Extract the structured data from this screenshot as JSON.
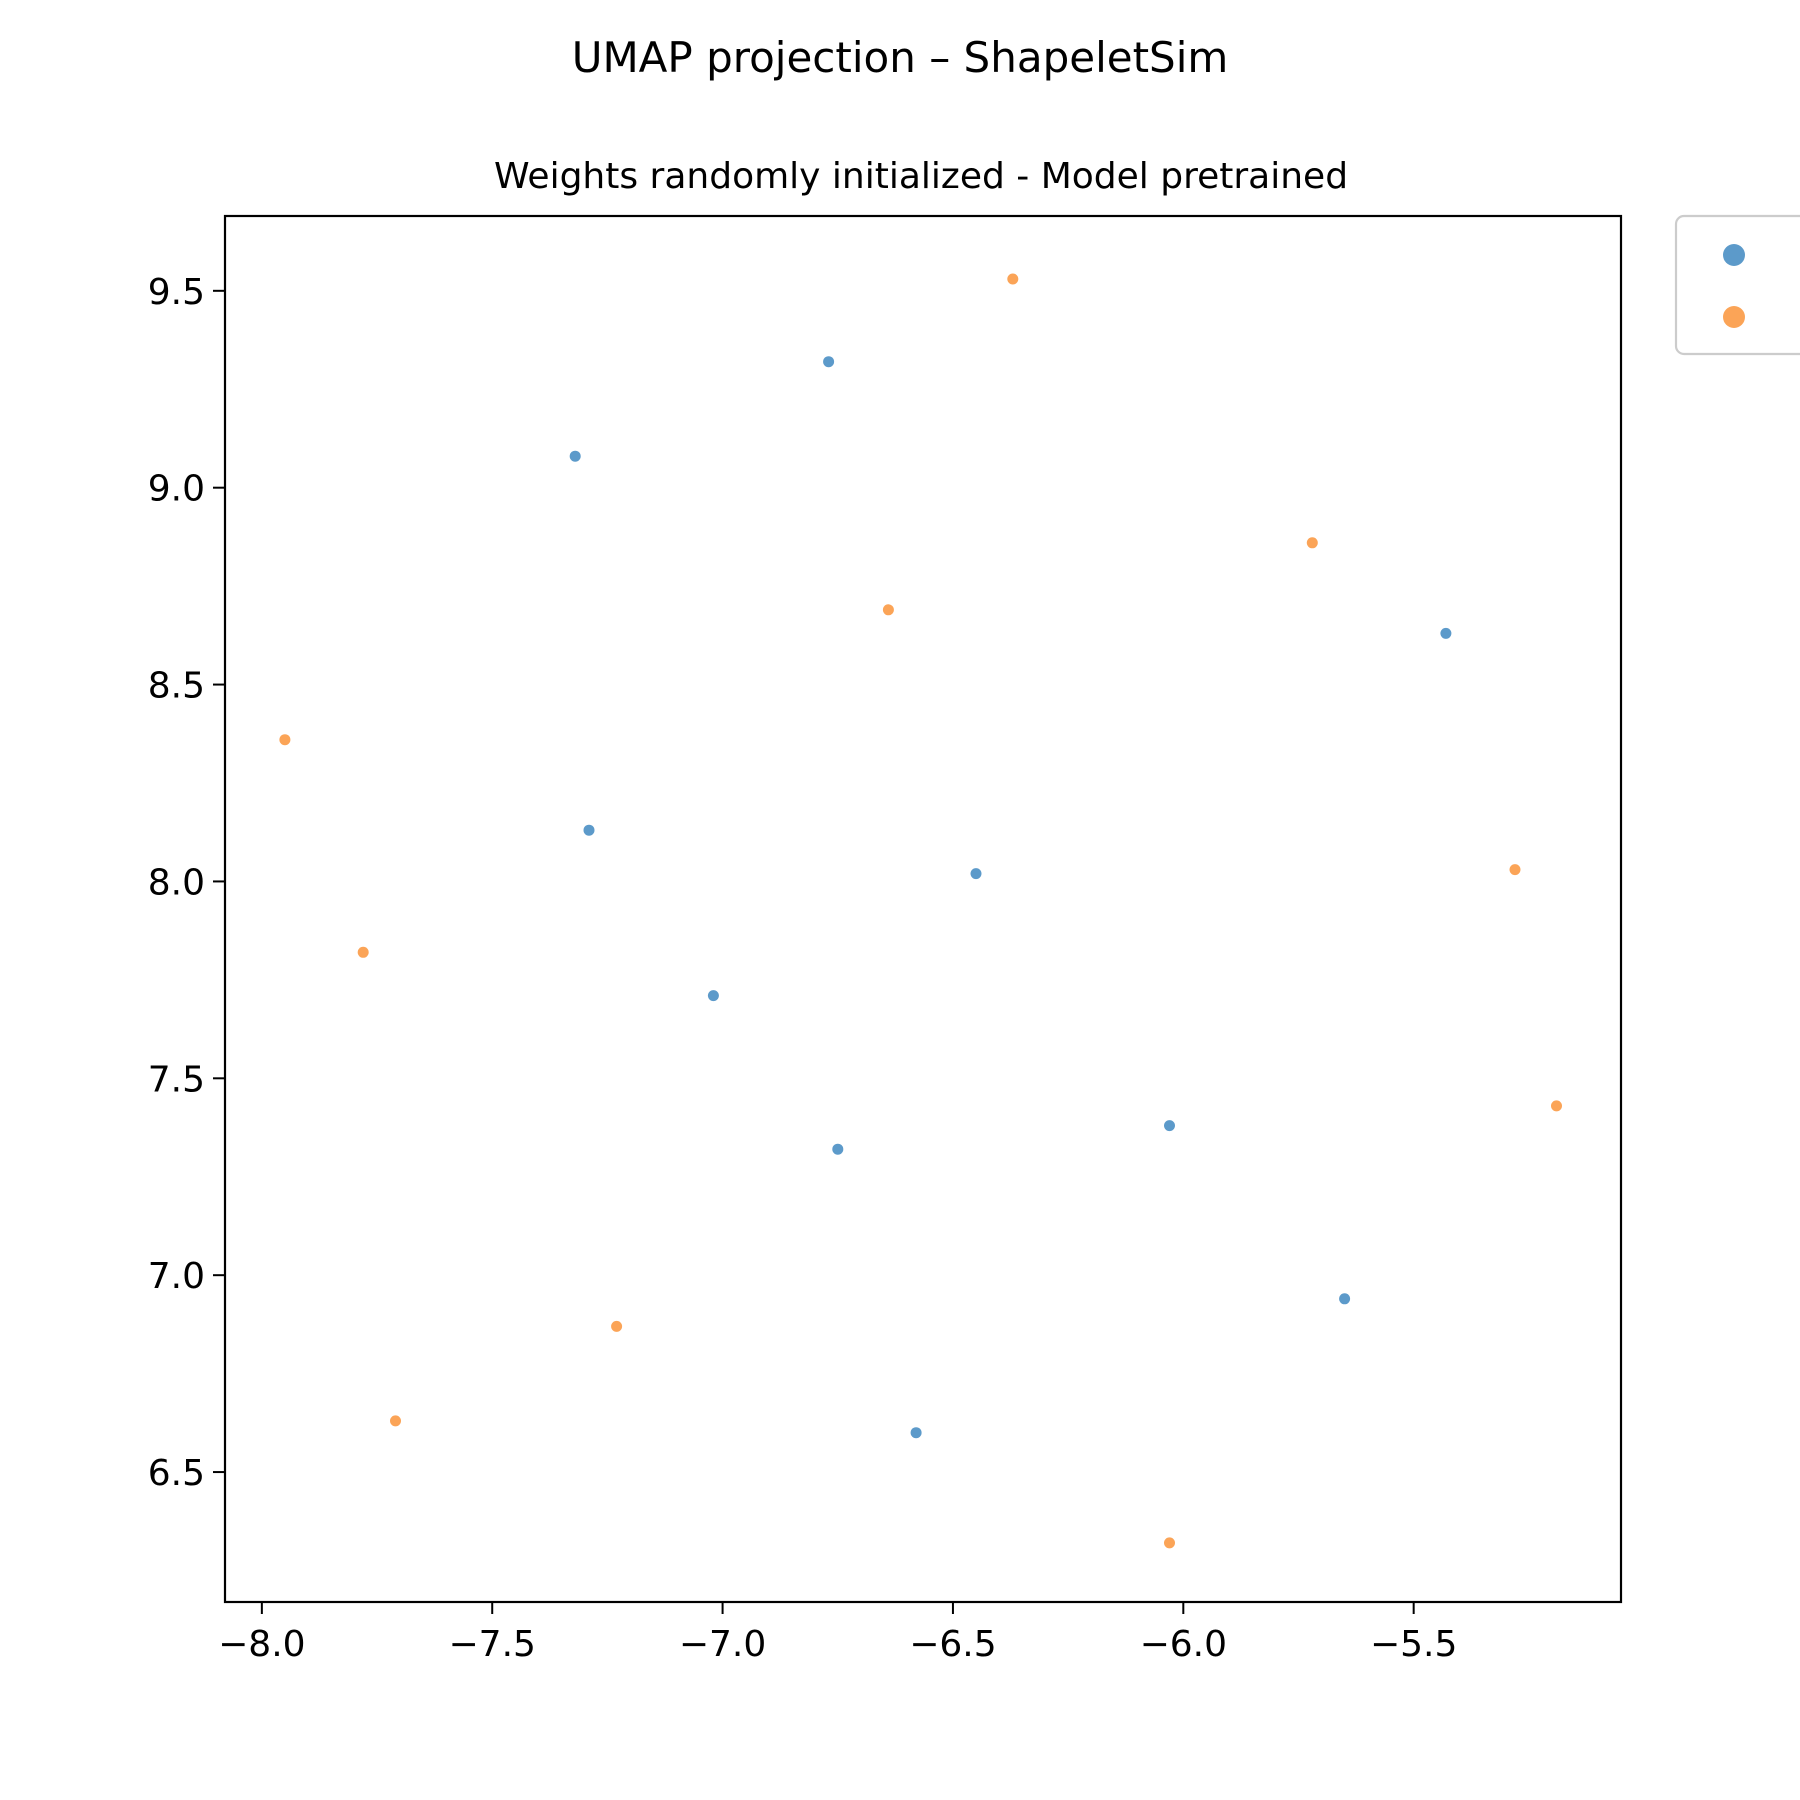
{
  "chart_data": {
    "type": "scatter",
    "title": "UMAP projection – ShapeletSim",
    "subtitle": "Weights randomly initialized - Model pretrained",
    "xlabel": "",
    "ylabel": "",
    "xlim": [
      -8.08,
      -5.05
    ],
    "ylim": [
      6.17,
      9.69
    ],
    "xticks": [
      -8.0,
      -7.5,
      -7.0,
      -6.5,
      -6.0,
      -5.5
    ],
    "xtick_labels": [
      "−8.0",
      "−7.5",
      "−7.0",
      "−6.5",
      "−6.0",
      "−5.5"
    ],
    "yticks": [
      6.5,
      7.0,
      7.5,
      8.0,
      8.5,
      9.0,
      9.5
    ],
    "ytick_labels": [
      "6.5",
      "7.0",
      "7.5",
      "8.0",
      "8.5",
      "9.0",
      "9.5"
    ],
    "grid": false,
    "legend": {
      "placement": "outside-top-right",
      "labels_visible": false
    },
    "series": [
      {
        "color": "#4a8fc4",
        "points": [
          [
            -6.77,
            9.32
          ],
          [
            -7.32,
            9.08
          ],
          [
            -5.43,
            8.63
          ],
          [
            -7.29,
            8.13
          ],
          [
            -6.45,
            8.02
          ],
          [
            -7.02,
            7.71
          ],
          [
            -6.75,
            7.32
          ],
          [
            -6.03,
            7.38
          ],
          [
            -5.65,
            6.94
          ],
          [
            -6.58,
            6.6
          ]
        ]
      },
      {
        "color": "#fb9a45",
        "points": [
          [
            -6.37,
            9.53
          ],
          [
            -5.72,
            8.86
          ],
          [
            -6.64,
            8.69
          ],
          [
            -7.95,
            8.36
          ],
          [
            -5.28,
            8.03
          ],
          [
            -7.78,
            7.82
          ],
          [
            -5.19,
            7.43
          ],
          [
            -7.23,
            6.87
          ],
          [
            -7.71,
            6.63
          ],
          [
            -6.03,
            6.32
          ]
        ]
      }
    ]
  }
}
